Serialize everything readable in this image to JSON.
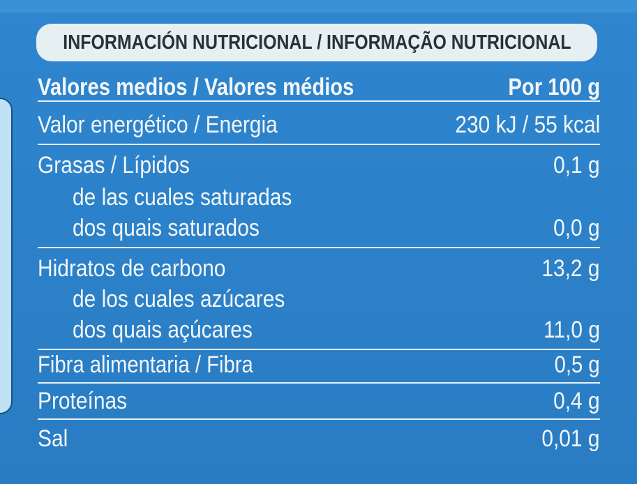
{
  "header": {
    "title": "INFORMACIÓN NUTRICIONAL / INFORMAÇÃO NUTRICIONAL"
  },
  "table": {
    "col_label": "Valores medios / Valores médios",
    "col_value": "Por 100 g",
    "rows": [
      {
        "label": "Valor energético / Energia",
        "value": "230 kJ / 55 kcal"
      },
      {
        "label": "Grasas / Lípidos",
        "value": "0,1 g"
      },
      {
        "label": "de las cuales saturadas",
        "value": ""
      },
      {
        "label": "dos quais saturados",
        "value": "0,0 g"
      },
      {
        "label": "Hidratos de carbono",
        "value": "13,2 g"
      },
      {
        "label": "de los cuales azúcares",
        "value": ""
      },
      {
        "label": "dos quais açúcares",
        "value": "11,0 g"
      },
      {
        "label": "Fibra alimentaria / Fibra",
        "value": "0,5 g"
      },
      {
        "label": "Proteínas",
        "value": "0,4 g"
      },
      {
        "label": "Sal",
        "value": "0,01 g"
      }
    ]
  },
  "colors": {
    "background": "#2f84cc",
    "header_box": "#e6eff2",
    "text": "#f2f6f8",
    "header_text": "#2a3138"
  }
}
